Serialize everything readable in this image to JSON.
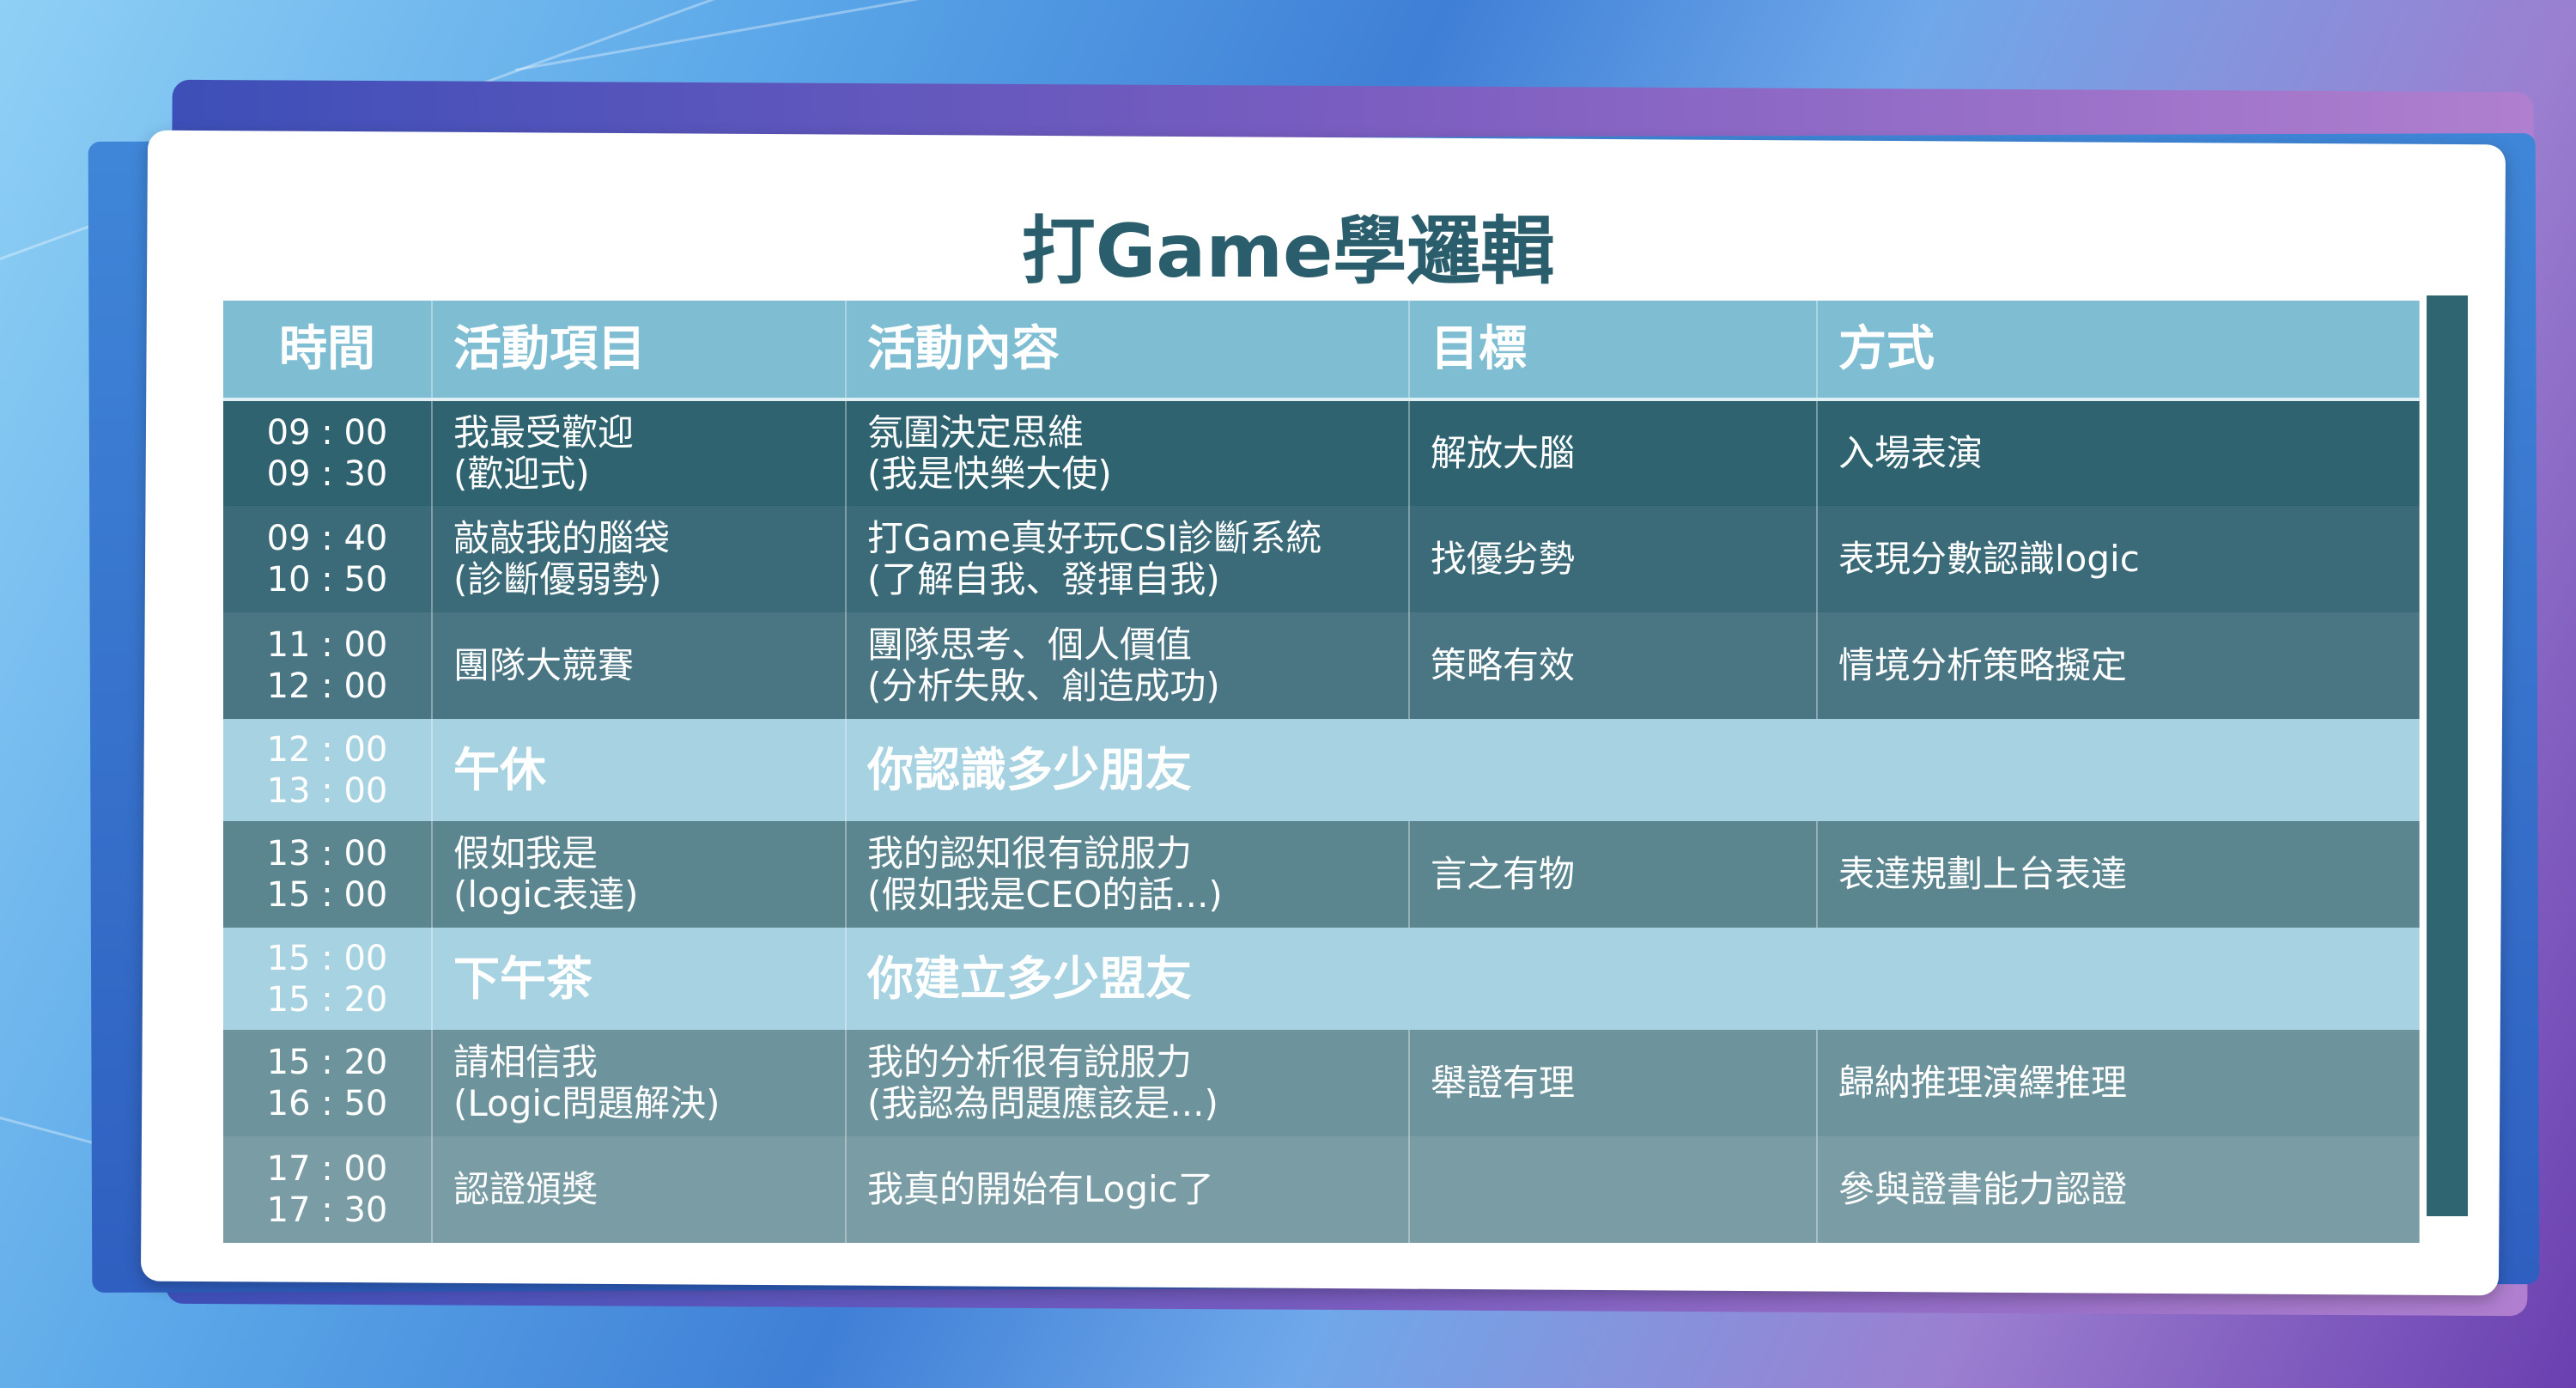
{
  "title": "打Game學邏輯",
  "headers": [
    "時間",
    "活動項目",
    "活動內容",
    "目標",
    "方式"
  ],
  "rows": [
    {
      "kind": "r",
      "bg": "#2f6370",
      "time": [
        "09 : 00",
        "09 : 30"
      ],
      "item": [
        "我最受歡迎",
        "(歡迎式)"
      ],
      "content": [
        "氛圍決定思維",
        "(我是快樂大使)"
      ],
      "goal": "解放大腦",
      "method": "入場表演"
    },
    {
      "kind": "r",
      "bg": "#3b6b78",
      "time": [
        "09 : 40",
        "10 : 50"
      ],
      "item": [
        "敲敲我的腦袋",
        "(診斷優弱勢)"
      ],
      "content": [
        "打Game真好玩CSI診斷系統",
        "(了解自我、發揮自我)"
      ],
      "goal": "找優劣勢",
      "method": "表現分數認識logic"
    },
    {
      "kind": "r",
      "bg": "#4a7583",
      "time": [
        "11 : 00",
        "12 : 00"
      ],
      "item": [
        "團隊大競賽"
      ],
      "content": [
        "團隊思考、個人價值",
        "(分析失敗、創造成功)"
      ],
      "goal": "策略有效",
      "method": "情境分析策略擬定"
    },
    {
      "kind": "l",
      "bg": "#a6d2e1",
      "time": [
        "12 : 00",
        "13 : 00"
      ],
      "item": [
        "午休"
      ],
      "content": [
        "你認識多少朋友"
      ]
    },
    {
      "kind": "r",
      "bg": "#5b8690",
      "time": [
        "13 : 00",
        "15 : 00"
      ],
      "item": [
        "假如我是",
        "(logic表達)"
      ],
      "content": [
        "我的認知很有說服力",
        "(假如我是CEO的話...)"
      ],
      "goal": "言之有物",
      "method": "表達規劃上台表達"
    },
    {
      "kind": "l",
      "bg": "#a6d2e1",
      "time": [
        "15 : 00",
        "15 : 20"
      ],
      "item": [
        "下午茶"
      ],
      "content": [
        "你建立多少盟友"
      ]
    },
    {
      "kind": "r",
      "bg": "#6d939c",
      "time": [
        "15 : 20",
        "16 : 50"
      ],
      "item": [
        "請相信我",
        "(Logic問題解決)"
      ],
      "content": [
        "我的分析很有說服力",
        "(我認為問題應該是...)"
      ],
      "goal": "舉證有理",
      "method": "歸納推理演繹推理"
    },
    {
      "kind": "r",
      "bg": "#7a9ca4",
      "time": [
        "17 : 00",
        "17 : 30"
      ],
      "item": [
        "認證頒獎"
      ],
      "content": [
        "我真的開始有Logic了"
      ],
      "goal": "",
      "method": "參與證書能力認證"
    }
  ]
}
